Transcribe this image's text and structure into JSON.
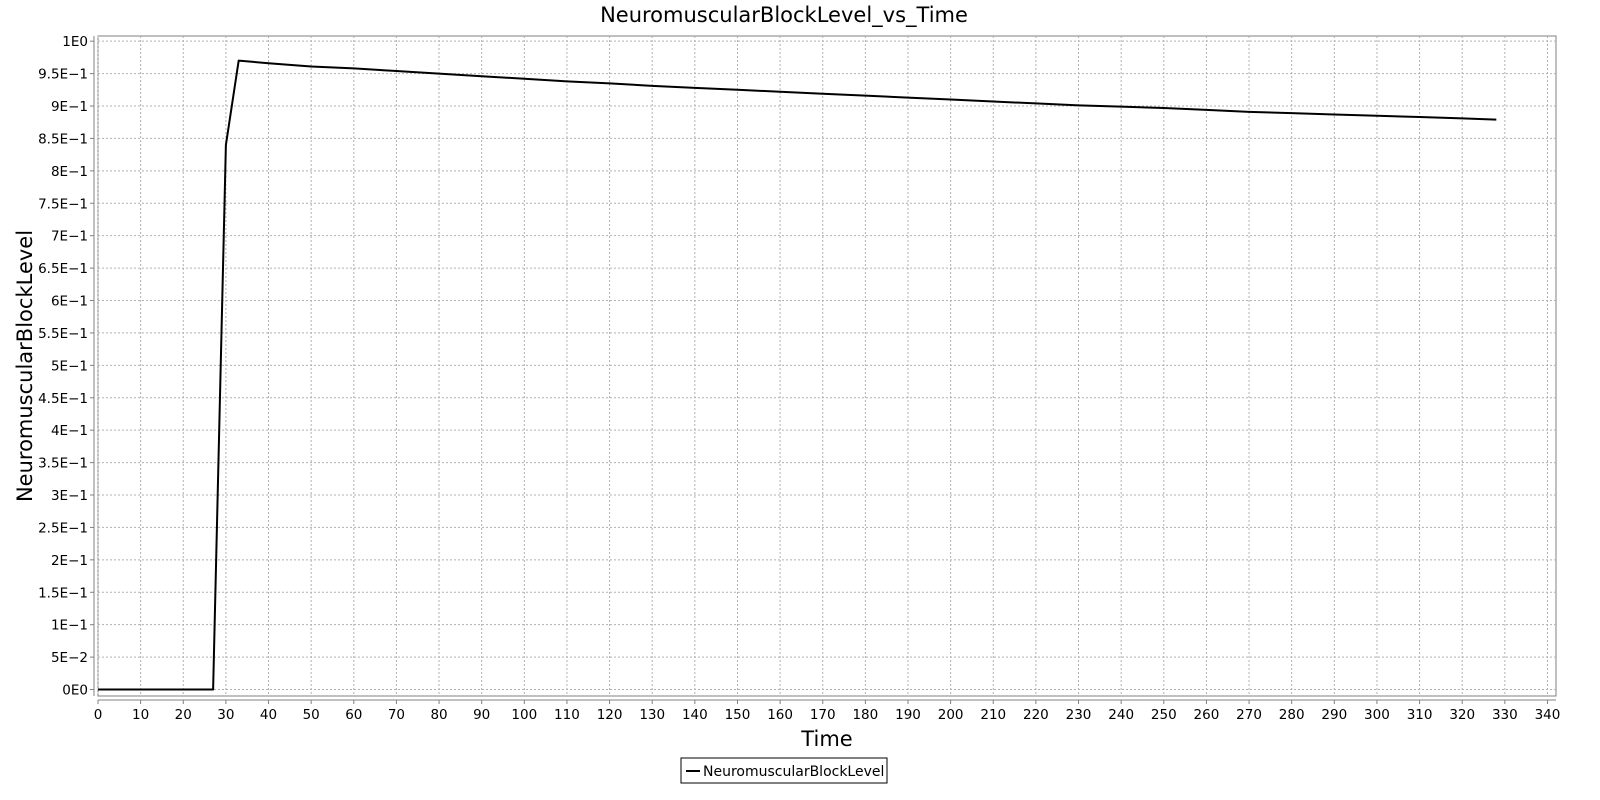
{
  "chart_data": {
    "type": "line",
    "title": "NeuromuscularBlockLevel_vs_Time",
    "xlabel": "Time",
    "ylabel": "NeuromuscularBlockLevel",
    "xlim": [
      0,
      342
    ],
    "ylim": [
      -0.01,
      1.008
    ],
    "grid": true,
    "legend_position": "bottom-center",
    "x_ticks": [
      "0",
      "10",
      "20",
      "30",
      "40",
      "50",
      "60",
      "70",
      "80",
      "90",
      "100",
      "110",
      "120",
      "130",
      "140",
      "150",
      "160",
      "170",
      "180",
      "190",
      "200",
      "210",
      "220",
      "230",
      "240",
      "250",
      "260",
      "270",
      "280",
      "290",
      "300",
      "310",
      "320",
      "330",
      "340"
    ],
    "y_ticks": [
      {
        "value": 0,
        "label": "0E0"
      },
      {
        "value": 0.05,
        "label": "5E−2"
      },
      {
        "value": 0.1,
        "label": "1E−1"
      },
      {
        "value": 0.15,
        "label": "1.5E−1"
      },
      {
        "value": 0.2,
        "label": "2E−1"
      },
      {
        "value": 0.25,
        "label": "2.5E−1"
      },
      {
        "value": 0.3,
        "label": "3E−1"
      },
      {
        "value": 0.35,
        "label": "3.5E−1"
      },
      {
        "value": 0.4,
        "label": "4E−1"
      },
      {
        "value": 0.45,
        "label": "4.5E−1"
      },
      {
        "value": 0.5,
        "label": "5E−1"
      },
      {
        "value": 0.55,
        "label": "5.5E−1"
      },
      {
        "value": 0.6,
        "label": "6E−1"
      },
      {
        "value": 0.65,
        "label": "6.5E−1"
      },
      {
        "value": 0.7,
        "label": "7E−1"
      },
      {
        "value": 0.75,
        "label": "7.5E−1"
      },
      {
        "value": 0.8,
        "label": "8E−1"
      },
      {
        "value": 0.85,
        "label": "8.5E−1"
      },
      {
        "value": 0.9,
        "label": "9E−1"
      },
      {
        "value": 0.95,
        "label": "9.5E−1"
      },
      {
        "value": 1.0,
        "label": "1E0"
      }
    ],
    "series": [
      {
        "name": "NeuromuscularBlockLevel",
        "color": "#000000",
        "x": [
          0,
          10,
          20,
          27,
          30,
          33,
          40,
          50,
          60,
          70,
          80,
          90,
          100,
          110,
          120,
          130,
          140,
          150,
          160,
          170,
          180,
          190,
          200,
          210,
          220,
          230,
          240,
          250,
          260,
          270,
          280,
          290,
          300,
          310,
          320,
          328
        ],
        "y": [
          0,
          0,
          0,
          0,
          0.84,
          0.97,
          0.966,
          0.961,
          0.958,
          0.954,
          0.95,
          0.946,
          0.942,
          0.938,
          0.935,
          0.931,
          0.928,
          0.925,
          0.922,
          0.919,
          0.916,
          0.913,
          0.91,
          0.907,
          0.904,
          0.901,
          0.899,
          0.897,
          0.894,
          0.891,
          0.889,
          0.887,
          0.885,
          0.883,
          0.881,
          0.879
        ]
      }
    ]
  }
}
